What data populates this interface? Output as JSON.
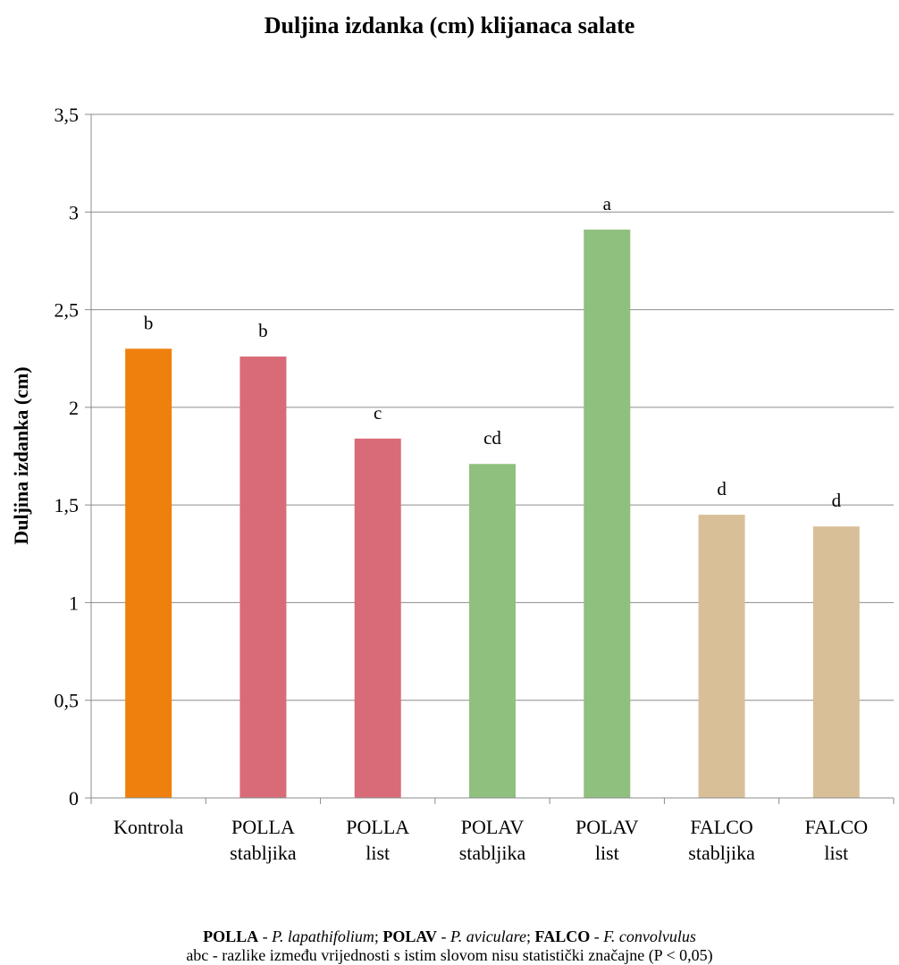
{
  "chart_data": {
    "type": "bar",
    "title": "Duljina izdanka (cm) klijanaca salate",
    "xlabel": "",
    "ylabel": "Duljina izdanka (cm)",
    "ylim": [
      0,
      3.5
    ],
    "y_ticks": [
      "0",
      "0,5",
      "1",
      "1,5",
      "2",
      "2,5",
      "3",
      "3,5"
    ],
    "grid": true,
    "categories": [
      [
        "Kontrola"
      ],
      [
        "POLLA",
        "stabljika"
      ],
      [
        "POLLA",
        "list"
      ],
      [
        "POLAV",
        "stabljika"
      ],
      [
        "POLAV",
        "list"
      ],
      [
        "FALCO",
        "stabljika"
      ],
      [
        "FALCO",
        "list"
      ]
    ],
    "values": [
      2.3,
      2.26,
      1.84,
      1.71,
      2.91,
      1.45,
      1.39
    ],
    "data_labels": [
      "b",
      "b",
      "c",
      "cd",
      "a",
      "d",
      "d"
    ],
    "colors": [
      "#F0800D",
      "#D86B77",
      "#D86B77",
      "#8FC07E",
      "#8FC07E",
      "#D9BF98",
      "#D9BF98"
    ]
  },
  "footnote": {
    "polla_abbr": "POLLA",
    "polla_sep": " - ",
    "polla_name": "P. lapathifolium",
    "sep1": "; ",
    "polav_abbr": "POLAV",
    "polav_sep": " - ",
    "polav_name": "P. aviculare",
    "sep2": "; ",
    "falco_abbr": "FALCO",
    "falco_sep": " - ",
    "falco_name": "F. convolvulus",
    "line2": "abc - razlike između vrijednosti s istim slovom nisu statistički značajne (P < 0,05)"
  }
}
